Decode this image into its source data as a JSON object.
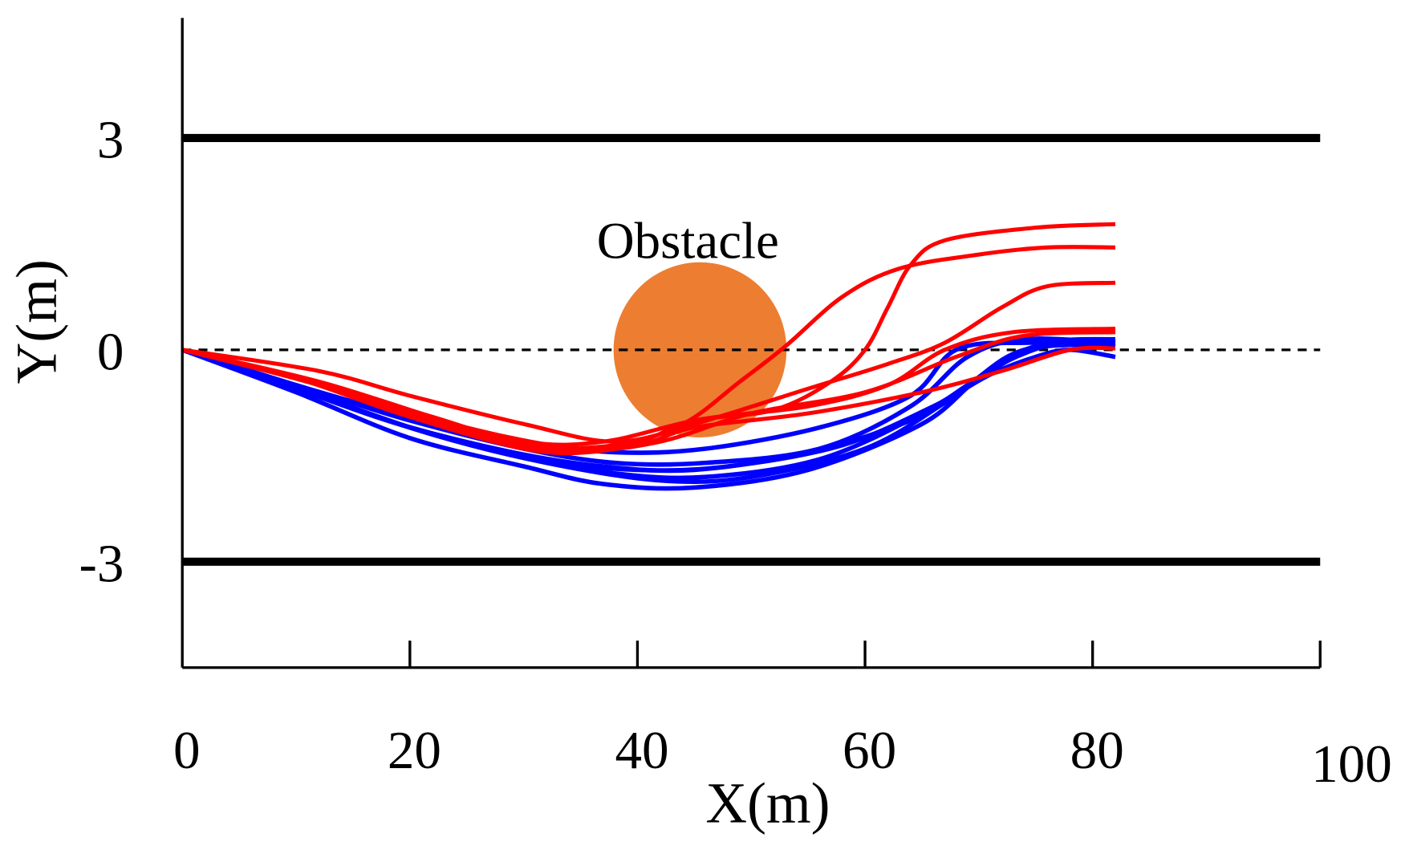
{
  "chart_data": {
    "type": "line",
    "title": "",
    "xlabel": "X(m)",
    "ylabel": "Y(m)",
    "xlim": [
      0,
      100
    ],
    "ylim": [
      -4.5,
      4.7
    ],
    "x_ticks": [
      0,
      20,
      40,
      60,
      80,
      100
    ],
    "x_tick_labels": [
      "0",
      "20",
      "40",
      "60",
      "80",
      "100"
    ],
    "y_tick_labels": [
      "3",
      "0",
      "-3"
    ],
    "y_ticks": [
      3,
      0,
      -3
    ],
    "grid": false,
    "lane_boundaries": [
      3,
      -3
    ],
    "centerline": 0,
    "colors": {
      "red_series": "#FF0000",
      "blue_series": "#0000FF",
      "obstacle": "#ED7D31",
      "lane": "#000000"
    },
    "obstacle": {
      "label": "Obstacle",
      "center": [
        45.5,
        0
      ],
      "radius_x": 7.6,
      "radius_y": 1.24
    },
    "blue_trajectories": [
      [
        [
          0,
          0
        ],
        [
          10,
          -0.6
        ],
        [
          20,
          -1.25
        ],
        [
          30,
          -1.65
        ],
        [
          37,
          -1.9
        ],
        [
          45,
          -1.95
        ],
        [
          55,
          -1.7
        ],
        [
          65,
          -1.05
        ],
        [
          70,
          -0.4
        ],
        [
          75,
          0.05
        ],
        [
          82,
          0.1
        ]
      ],
      [
        [
          0,
          0
        ],
        [
          10,
          -0.55
        ],
        [
          20,
          -1.1
        ],
        [
          30,
          -1.5
        ],
        [
          38,
          -1.75
        ],
        [
          46,
          -1.8
        ],
        [
          56,
          -1.55
        ],
        [
          65,
          -0.9
        ],
        [
          71,
          -0.3
        ],
        [
          76,
          0.1
        ],
        [
          82,
          0.15
        ]
      ],
      [
        [
          0,
          0
        ],
        [
          12,
          -0.6
        ],
        [
          20,
          -1.0
        ],
        [
          30,
          -1.4
        ],
        [
          38,
          -1.6
        ],
        [
          46,
          -1.6
        ],
        [
          56,
          -1.4
        ],
        [
          64,
          -0.8
        ],
        [
          69,
          -0.1
        ],
        [
          74,
          0.15
        ],
        [
          82,
          0.1
        ]
      ],
      [
        [
          0,
          0
        ],
        [
          10,
          -0.5
        ],
        [
          20,
          -0.95
        ],
        [
          30,
          -1.3
        ],
        [
          38,
          -1.45
        ],
        [
          46,
          -1.4
        ],
        [
          56,
          -1.1
        ],
        [
          64,
          -0.65
        ],
        [
          68,
          0
        ],
        [
          74,
          0.1
        ],
        [
          82,
          0.05
        ]
      ],
      [
        [
          0,
          0
        ],
        [
          11,
          -0.6
        ],
        [
          21,
          -1.15
        ],
        [
          31,
          -1.55
        ],
        [
          40,
          -1.7
        ],
        [
          48,
          -1.65
        ],
        [
          58,
          -1.35
        ],
        [
          66,
          -0.8
        ],
        [
          71,
          -0.35
        ],
        [
          75,
          -0.1
        ],
        [
          78,
          0
        ],
        [
          82,
          -0.1
        ]
      ],
      [
        [
          0,
          0
        ],
        [
          10,
          -0.55
        ],
        [
          19,
          -1.05
        ],
        [
          29,
          -1.45
        ],
        [
          37,
          -1.65
        ],
        [
          45,
          -1.7
        ],
        [
          55,
          -1.45
        ],
        [
          64,
          -1.0
        ],
        [
          69,
          -0.5
        ],
        [
          74,
          0
        ],
        [
          82,
          0.08
        ]
      ],
      [
        [
          0,
          0
        ],
        [
          12,
          -0.65
        ],
        [
          22,
          -1.2
        ],
        [
          32,
          -1.6
        ],
        [
          42,
          -1.85
        ],
        [
          50,
          -1.8
        ],
        [
          60,
          -1.4
        ],
        [
          67,
          -0.75
        ],
        [
          72,
          -0.2
        ],
        [
          77,
          0.1
        ],
        [
          82,
          0.12
        ]
      ]
    ],
    "red_trajectories": [
      [
        [
          0,
          0
        ],
        [
          10,
          -0.4
        ],
        [
          20,
          -0.9
        ],
        [
          30,
          -1.3
        ],
        [
          37,
          -1.3
        ],
        [
          45,
          -1.0
        ],
        [
          52,
          -0.85
        ],
        [
          57,
          -0.45
        ],
        [
          60,
          0
        ],
        [
          62,
          0.6
        ],
        [
          64,
          1.2
        ],
        [
          67,
          1.55
        ],
        [
          75,
          1.73
        ],
        [
          82,
          1.78
        ]
      ],
      [
        [
          0,
          0
        ],
        [
          10,
          -0.4
        ],
        [
          20,
          -0.95
        ],
        [
          30,
          -1.35
        ],
        [
          38,
          -1.35
        ],
        [
          44,
          -1.05
        ],
        [
          49,
          -0.45
        ],
        [
          53,
          0.05
        ],
        [
          58,
          0.75
        ],
        [
          63,
          1.15
        ],
        [
          70,
          1.35
        ],
        [
          76,
          1.45
        ],
        [
          82,
          1.45
        ]
      ],
      [
        [
          0,
          0
        ],
        [
          12,
          -0.3
        ],
        [
          20,
          -0.65
        ],
        [
          30,
          -1.05
        ],
        [
          38,
          -1.3
        ],
        [
          45,
          -1.05
        ],
        [
          55,
          -0.55
        ],
        [
          62,
          -0.2
        ],
        [
          67,
          0.1
        ],
        [
          72,
          0.6
        ],
        [
          76,
          0.9
        ],
        [
          82,
          0.95
        ]
      ],
      [
        [
          0,
          0
        ],
        [
          12,
          -0.45
        ],
        [
          22,
          -0.95
        ],
        [
          32,
          -1.4
        ],
        [
          40,
          -1.3
        ],
        [
          45,
          -1.0
        ],
        [
          55,
          -0.8
        ],
        [
          62,
          -0.5
        ],
        [
          67,
          0
        ],
        [
          73,
          0.25
        ],
        [
          82,
          0.3
        ]
      ],
      [
        [
          0,
          0
        ],
        [
          12,
          -0.5
        ],
        [
          22,
          -1.05
        ],
        [
          32,
          -1.45
        ],
        [
          40,
          -1.35
        ],
        [
          45,
          -1.1
        ],
        [
          55,
          -0.9
        ],
        [
          65,
          -0.6
        ],
        [
          72,
          -0.3
        ],
        [
          78,
          0
        ],
        [
          82,
          0.02
        ]
      ],
      [
        [
          0,
          0
        ],
        [
          15,
          -0.6
        ],
        [
          25,
          -1.1
        ],
        [
          35,
          -1.4
        ],
        [
          42,
          -1.3
        ],
        [
          50,
          -0.9
        ],
        [
          60,
          -0.6
        ],
        [
          68,
          -0.1
        ],
        [
          74,
          0.2
        ],
        [
          82,
          0.25
        ]
      ]
    ]
  }
}
